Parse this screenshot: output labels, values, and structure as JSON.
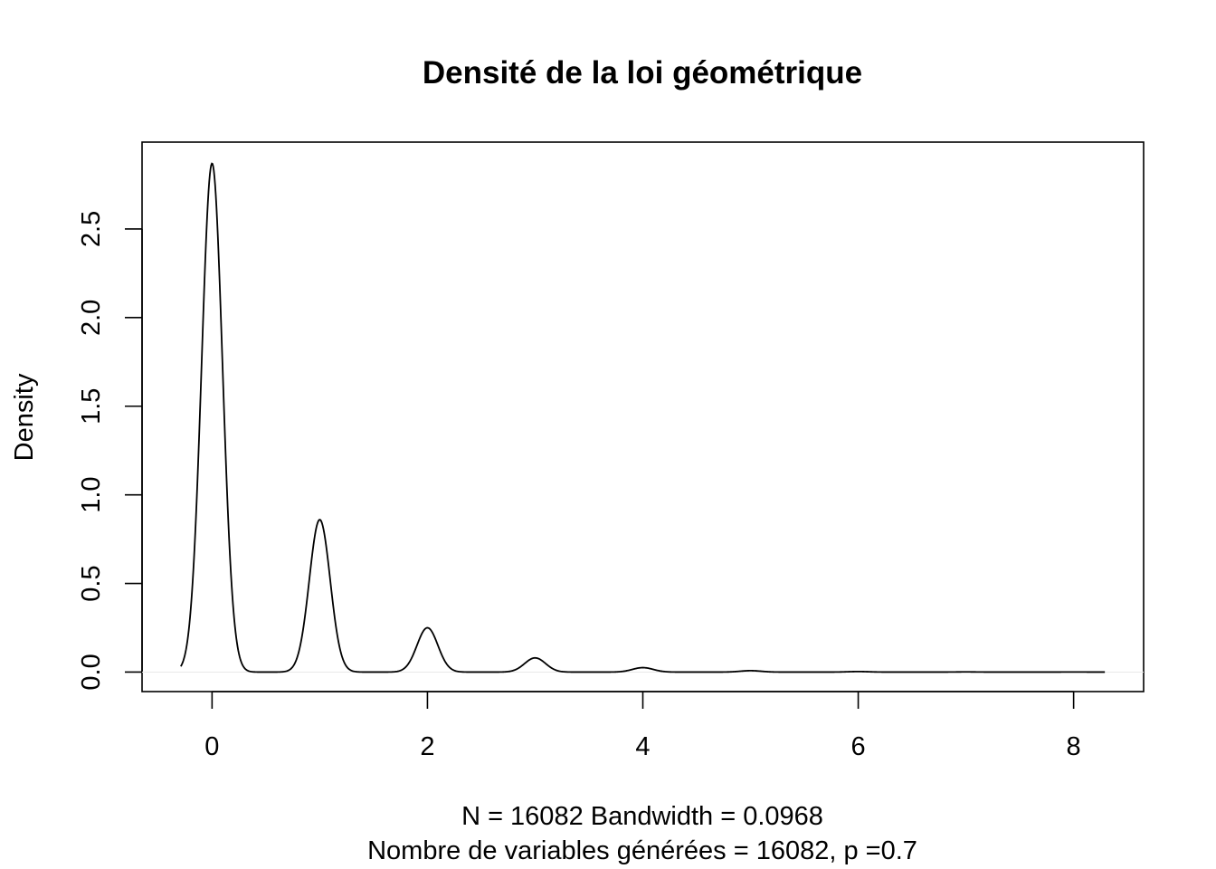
{
  "chart_data": {
    "type": "line",
    "title": "Densité de la loi géométrique",
    "xlabel_line1": "N = 16082   Bandwidth = 0.0968",
    "xlabel_line2": "Nombre de variables générées = 16082, p =0.7",
    "ylabel": "Density",
    "xlim": [
      -0.65,
      8.65
    ],
    "ylim": [
      -0.11,
      2.99
    ],
    "x_ticks": [
      0,
      2,
      4,
      6,
      8
    ],
    "x_tick_labels": [
      "0",
      "2",
      "4",
      "6",
      "8"
    ],
    "y_ticks": [
      0.0,
      0.5,
      1.0,
      1.5,
      2.0,
      2.5
    ],
    "y_tick_labels": [
      "0.0",
      "0.5",
      "1.0",
      "1.5",
      "2.0",
      "2.5"
    ],
    "grid": false,
    "line_color": "#000000",
    "baseline_color": "#e8e8e8",
    "density_range": [
      -0.29,
      8.29
    ],
    "bandwidth": 0.0968,
    "peaks": [
      {
        "x": 0,
        "y": 2.87
      },
      {
        "x": 1,
        "y": 0.86
      },
      {
        "x": 2,
        "y": 0.25
      },
      {
        "x": 3,
        "y": 0.08
      },
      {
        "x": 4,
        "y": 0.025
      },
      {
        "x": 5,
        "y": 0.008
      },
      {
        "x": 6,
        "y": 0.003
      },
      {
        "x": 7,
        "y": 0.001
      },
      {
        "x": 8,
        "y": 0.0005
      }
    ]
  }
}
